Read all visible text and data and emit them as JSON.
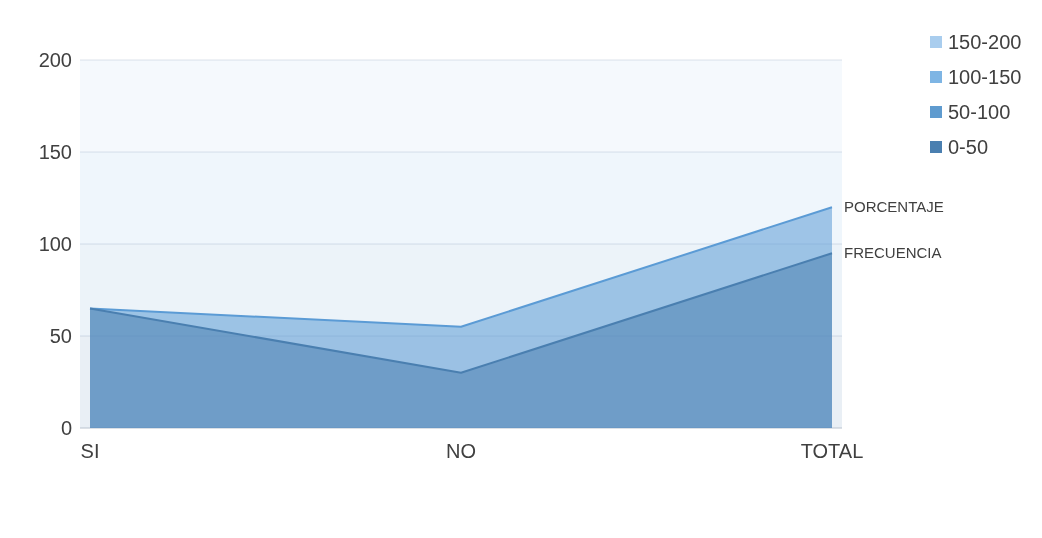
{
  "chart_data": {
    "type": "area",
    "categories": [
      "SI",
      "NO",
      "TOTAL"
    ],
    "series": [
      {
        "name": "PORCENTAJE",
        "color": "#5b9bd5",
        "values": [
          65,
          55,
          120
        ]
      },
      {
        "name": "FRECUENCIA",
        "color": "#4a7fb0",
        "values": [
          65,
          30,
          95
        ]
      }
    ],
    "ylim": [
      0,
      200
    ],
    "yticks": [
      0,
      50,
      100,
      150,
      200
    ],
    "grid": "y",
    "bands": [
      {
        "axis": "y",
        "from": 150,
        "to": 200,
        "label": "150-200",
        "color": "#a9cdee"
      },
      {
        "axis": "y",
        "from": 100,
        "to": 150,
        "label": "100-150",
        "color": "#7eb5e4"
      },
      {
        "axis": "y",
        "from": 50,
        "to": 100,
        "label": "50-100",
        "color": "#5f9bcf"
      },
      {
        "axis": "y",
        "from": 0,
        "to": 50,
        "label": "0-50",
        "color": "#4a7fb0"
      }
    ],
    "legend": "right"
  }
}
